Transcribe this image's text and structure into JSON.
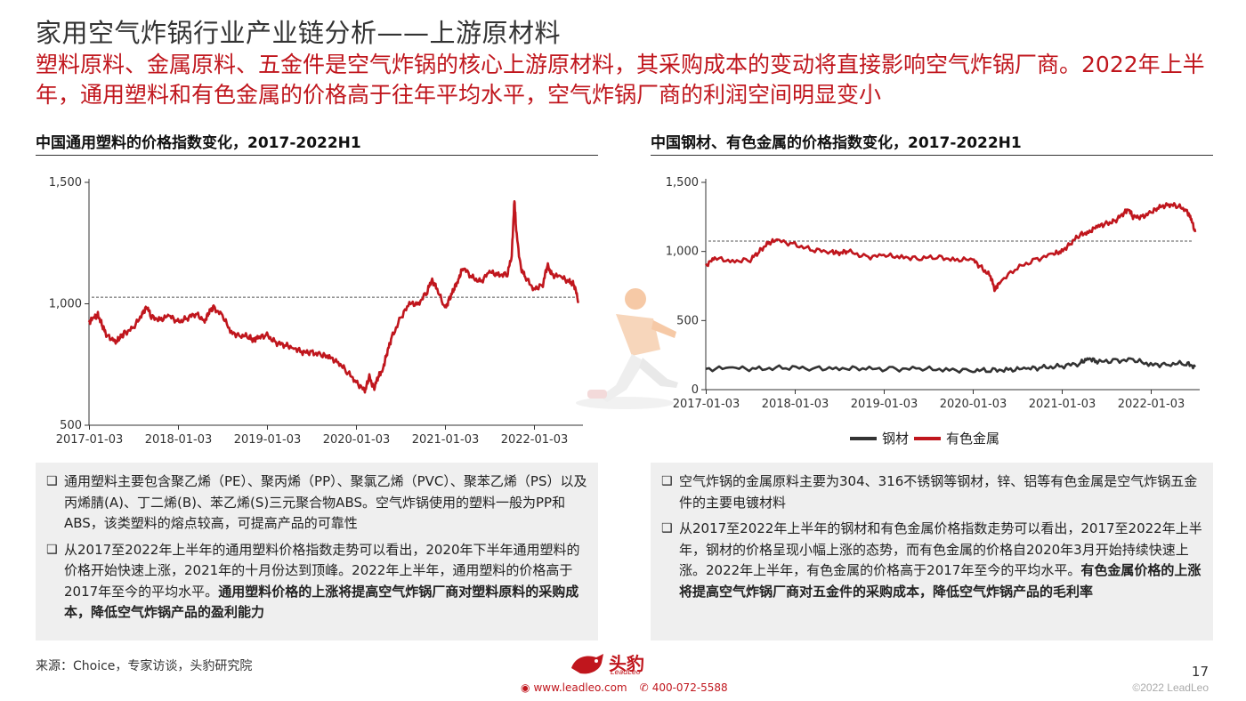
{
  "header": {
    "title": "家用空气炸锅行业产业链分析——上游原材料",
    "subtitle": "塑料原料、金属原料、五金件是空气炸锅的核心上游原材料，其采购成本的变动将直接影响空气炸锅厂商。2022年上半年，通用塑料和有色金属的价格高于往年平均水平，空气炸锅厂商的利润空间明显变小"
  },
  "left_panel": {
    "heading": "中国通用塑料的价格指数变化，2017-2022H1",
    "notes": [
      {
        "text": "通用塑料主要包含聚乙烯（PE）、聚丙烯（PP）、聚氯乙烯（PVC）、聚苯乙烯（PS）以及丙烯腈(A)、丁二烯(B)、苯乙烯(S)三元聚合物ABS。空气炸锅使用的塑料一般为PP和ABS，该类塑料的熔点较高，可提高产品的可靠性",
        "bold": ""
      },
      {
        "text": "从2017至2022年上半年的通用塑料价格指数走势可以看出，2020年下半年通用塑料的价格开始快速上涨，2021年的十月份达到顶峰。2022年上半年，通用塑料的价格高于2017年至今的平均水平。",
        "bold": "通用塑料价格的上涨将提高空气炸锅厂商对塑料原料的采购成本，降低空气炸锅产品的盈利能力"
      }
    ]
  },
  "right_panel": {
    "heading": "中国钢材、有色金属的价格指数变化，2017-2022H1",
    "legend": [
      "钢材",
      "有色金属"
    ],
    "notes": [
      {
        "text": "空气炸锅的金属原料主要为304、316不锈钢等钢材，锌、铝等有色金属是空气炸锅五金件的主要电镀材料",
        "bold": ""
      },
      {
        "text": "从2017至2022年上半年的钢材和有色金属价格指数走势可以看出，2017至2022年上半年，钢材的价格呈现小幅上涨的态势，而有色金属的价格自2020年3月开始持续快速上涨。2022年上半年，有色金属的价格高于2017年至今的平均水平。",
        "bold": "有色金属价格的上涨将提高空气炸锅厂商对五金件的采购成本，降低空气炸锅产品的毛利率"
      }
    ]
  },
  "footer": {
    "source": "来源：Choice，专家访谈，头豹研究院",
    "logo_text": "头豹",
    "logo_sub": "LeadLeo",
    "website": "www.leadleo.com",
    "phone": "400-072-5588",
    "page_number": "17",
    "copyright": "©2022 LeadLeo"
  },
  "colors": {
    "accent": "#c0161d",
    "steel": "#333333",
    "avg_line": "#555555"
  },
  "chart_data": [
    {
      "type": "line",
      "title": "中国通用塑料的价格指数变化，2017-2022H1",
      "x_ticks": [
        "2017-01-03",
        "2018-01-03",
        "2019-01-03",
        "2020-01-03",
        "2021-01-03",
        "2022-01-03"
      ],
      "y_ticks": [
        "500",
        "1,000",
        "1,500"
      ],
      "ylim": [
        500,
        1500
      ],
      "xlim": [
        2017.0,
        2022.55
      ],
      "average_line": 1027,
      "series": [
        {
          "color": "#c0161d",
          "x": [
            2017.0,
            2017.05,
            2017.1,
            2017.15,
            2017.2,
            2017.3,
            2017.35,
            2017.4,
            2017.5,
            2017.6,
            2017.65,
            2017.7,
            2017.8,
            2017.9,
            2018.0,
            2018.1,
            2018.2,
            2018.3,
            2018.35,
            2018.4,
            2018.5,
            2018.6,
            2018.7,
            2018.8,
            2018.85,
            2018.9,
            2019.0,
            2019.1,
            2019.2,
            2019.3,
            2019.4,
            2019.5,
            2019.6,
            2019.7,
            2019.8,
            2019.9,
            2020.0,
            2020.1,
            2020.15,
            2020.2,
            2020.25,
            2020.3,
            2020.35,
            2020.4,
            2020.5,
            2020.6,
            2020.7,
            2020.8,
            2020.85,
            2020.9,
            2021.0,
            2021.05,
            2021.1,
            2021.15,
            2021.2,
            2021.3,
            2021.4,
            2021.5,
            2021.6,
            2021.7,
            2021.75,
            2021.78,
            2021.8,
            2021.85,
            2021.9,
            2022.0,
            2022.1,
            2022.15,
            2022.2,
            2022.3,
            2022.4,
            2022.45,
            2022.5
          ],
          "y": [
            925,
            940,
            955,
            910,
            870,
            845,
            860,
            880,
            900,
            960,
            990,
            945,
            935,
            950,
            925,
            940,
            960,
            930,
            965,
            985,
            950,
            880,
            870,
            865,
            850,
            860,
            870,
            840,
            830,
            820,
            800,
            800,
            790,
            780,
            760,
            720,
            680,
            640,
            700,
            650,
            700,
            730,
            800,
            860,
            940,
            1000,
            1000,
            1050,
            1100,
            1070,
            980,
            1020,
            1060,
            1100,
            1150,
            1110,
            1090,
            1130,
            1120,
            1120,
            1200,
            1430,
            1300,
            1150,
            1110,
            1060,
            1080,
            1160,
            1120,
            1110,
            1090,
            1080,
            1010
          ]
        }
      ]
    },
    {
      "type": "line",
      "title": "中国钢材、有色金属的价格指数变化，2017-2022H1",
      "x_ticks": [
        "2017-01-03",
        "2018-01-03",
        "2019-01-03",
        "2020-01-03",
        "2021-01-03",
        "2022-01-03"
      ],
      "y_ticks": [
        "0",
        "500",
        "1,000",
        "1,500"
      ],
      "ylim": [
        0,
        1500
      ],
      "xlim": [
        2017.0,
        2022.55
      ],
      "average_line": 1075,
      "series": [
        {
          "name": "钢材",
          "color": "#333333",
          "x": [
            2017.0,
            2017.3,
            2017.6,
            2017.9,
            2018.2,
            2018.5,
            2018.8,
            2019.1,
            2019.4,
            2019.7,
            2020.0,
            2020.2,
            2020.4,
            2020.6,
            2020.8,
            2021.0,
            2021.2,
            2021.3,
            2021.4,
            2021.6,
            2021.8,
            2022.0,
            2022.2,
            2022.4,
            2022.5
          ],
          "y": [
            150,
            155,
            150,
            160,
            155,
            155,
            150,
            150,
            150,
            145,
            140,
            140,
            145,
            150,
            160,
            170,
            190,
            230,
            200,
            210,
            215,
            180,
            185,
            190,
            165
          ]
        },
        {
          "name": "有色金属",
          "color": "#c0161d",
          "x": [
            2017.0,
            2017.1,
            2017.3,
            2017.5,
            2017.6,
            2017.7,
            2017.8,
            2018.0,
            2018.2,
            2018.4,
            2018.5,
            2018.6,
            2018.8,
            2019.0,
            2019.2,
            2019.4,
            2019.6,
            2019.8,
            2020.0,
            2020.1,
            2020.2,
            2020.25,
            2020.3,
            2020.5,
            2020.7,
            2020.9,
            2021.0,
            2021.1,
            2021.2,
            2021.3,
            2021.4,
            2021.5,
            2021.6,
            2021.7,
            2021.75,
            2021.8,
            2021.9,
            2022.0,
            2022.1,
            2022.2,
            2022.3,
            2022.4,
            2022.45,
            2022.5
          ],
          "y": [
            900,
            950,
            930,
            940,
            1000,
            1060,
            1080,
            1050,
            1010,
            1000,
            990,
            1000,
            960,
            970,
            960,
            950,
            960,
            940,
            940,
            880,
            820,
            720,
            780,
            880,
            940,
            980,
            1000,
            1060,
            1120,
            1140,
            1180,
            1200,
            1220,
            1280,
            1310,
            1250,
            1250,
            1280,
            1320,
            1340,
            1330,
            1300,
            1240,
            1140
          ]
        }
      ]
    }
  ]
}
